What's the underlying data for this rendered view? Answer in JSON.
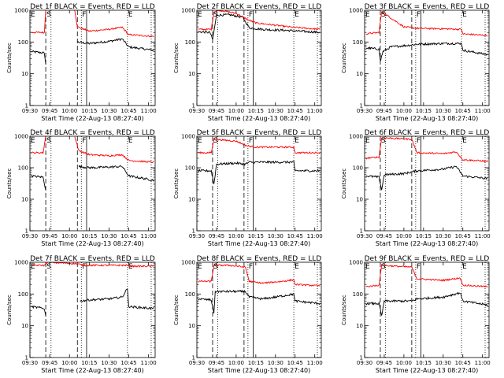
{
  "chart_data": {
    "type": "line",
    "layout": "3x3 grid",
    "y_scale": "log",
    "ylim": [
      1,
      1000
    ],
    "xlim": [
      "09:30",
      "11:05"
    ],
    "x_ticks": [
      "09:30",
      "09:45",
      "10:00",
      "10:15",
      "10:30",
      "10:45",
      "11:00"
    ],
    "y_ticks": [
      "1",
      "10",
      "100",
      "1000"
    ],
    "ylabel": "Counts/sec",
    "xlabel": "Start Time (22-Aug-13 08:27:40)",
    "series_colors": {
      "events": "#000000",
      "lld": "#ff0000"
    },
    "markers": [
      {
        "label": "E",
        "time": "09:30",
        "style": "dotted"
      },
      {
        "label": "S",
        "time": "09:42",
        "style": "dashed"
      },
      {
        "label": "",
        "time": "09:46",
        "style": "dotted"
      },
      {
        "label": "",
        "time": "10:06",
        "style": "dashed"
      },
      {
        "label": "F",
        "time": "10:09",
        "style": "dotted"
      },
      {
        "label": "",
        "time": "10:13",
        "style": "solid"
      },
      {
        "label": "E",
        "time": "10:44",
        "style": "dotted"
      },
      {
        "label": "",
        "time": "11:02",
        "style": "dotted"
      }
    ],
    "panels": [
      {
        "title": "Det 1f BLACK = Events, RED = LLD",
        "events": [
          [
            [
              "09:31",
              50
            ],
            [
              "09:41",
              45
            ],
            [
              "09:42",
              20
            ]
          ],
          [
            [
              "10:06",
              100
            ],
            [
              "10:15",
              90
            ],
            [
              "10:30",
              105
            ],
            [
              "10:40",
              125
            ],
            [
              "10:45",
              70
            ],
            [
              "11:04",
              55
            ]
          ]
        ],
        "lld": [
          [
            [
              "09:31",
              200
            ],
            [
              "09:41",
              200
            ],
            [
              "09:42",
              1000
            ]
          ],
          [
            [
              "10:04",
              1000
            ],
            [
              "10:06",
              300
            ],
            [
              "10:15",
              220
            ],
            [
              "10:30",
              250
            ],
            [
              "10:40",
              290
            ],
            [
              "10:45",
              170
            ],
            [
              "11:04",
              150
            ]
          ]
        ]
      },
      {
        "title": "Det 2f BLACK = Events, RED = LLD",
        "events": [
          [
            [
              "09:31",
              210
            ],
            [
              "09:40",
              200
            ],
            [
              "09:42",
              120
            ],
            [
              "09:43",
              210
            ],
            [
              "09:45",
              700
            ],
            [
              "09:55",
              720
            ],
            [
              "10:05",
              600
            ],
            [
              "10:10",
              280
            ],
            [
              "10:20",
              250
            ],
            [
              "10:40",
              230
            ],
            [
              "11:04",
              200
            ]
          ]
        ],
        "lld": [
          [
            [
              "09:31",
              250
            ],
            [
              "09:41",
              250
            ],
            [
              "09:43",
              900
            ],
            [
              "09:47",
              1000
            ],
            [
              "10:00",
              800
            ],
            [
              "10:09",
              500
            ],
            [
              "10:15",
              400
            ],
            [
              "10:40",
              300
            ],
            [
              "11:04",
              250
            ]
          ]
        ]
      },
      {
        "title": "Det 3f BLACK = Events, RED = LLD",
        "events": [
          [
            [
              "09:31",
              65
            ],
            [
              "09:41",
              60
            ],
            [
              "09:42",
              25
            ],
            [
              "09:44",
              50
            ],
            [
              "09:50",
              70
            ],
            [
              "10:05",
              80
            ],
            [
              "10:10",
              85
            ],
            [
              "10:30",
              90
            ],
            [
              "10:44",
              90
            ],
            [
              "10:45",
              55
            ],
            [
              "11:04",
              40
            ]
          ]
        ],
        "lld": [
          [
            [
              "09:31",
              180
            ],
            [
              "09:41",
              200
            ],
            [
              "09:43",
              900
            ],
            [
              "10:00",
              300
            ],
            [
              "10:10",
              270
            ],
            [
              "10:30",
              260
            ],
            [
              "10:44",
              250
            ],
            [
              "10:45",
              180
            ],
            [
              "11:04",
              160
            ]
          ]
        ]
      },
      {
        "title": "Det 4f BLACK = Events, RED = LLD",
        "events": [
          [
            [
              "09:31",
              55
            ],
            [
              "09:40",
              50
            ],
            [
              "09:42",
              20
            ]
          ],
          [
            [
              "10:07",
              110
            ],
            [
              "10:15",
              100
            ],
            [
              "10:30",
              105
            ],
            [
              "10:40",
              110
            ],
            [
              "10:45",
              55
            ],
            [
              "11:04",
              40
            ]
          ]
        ],
        "lld": [
          [
            [
              "09:31",
              300
            ],
            [
              "09:40",
              300
            ],
            [
              "09:42",
              1000
            ]
          ],
          [
            [
              "10:04",
              1000
            ],
            [
              "10:07",
              350
            ],
            [
              "10:15",
              260
            ],
            [
              "10:30",
              240
            ],
            [
              "10:40",
              260
            ],
            [
              "10:45",
              170
            ],
            [
              "11:04",
              150
            ]
          ]
        ]
      },
      {
        "title": "Det 5f BLACK = Events, RED = LLD",
        "events": [
          [
            [
              "09:31",
              80
            ],
            [
              "09:41",
              80
            ],
            [
              "09:43",
              30
            ],
            [
              "09:45",
              130
            ],
            [
              "10:00",
              140
            ],
            [
              "10:07",
              130
            ],
            [
              "10:10",
              150
            ],
            [
              "10:44",
              150
            ],
            [
              "10:45",
              80
            ],
            [
              "11:04",
              80
            ]
          ]
        ],
        "lld": [
          [
            [
              "09:31",
              300
            ],
            [
              "09:41",
              300
            ],
            [
              "09:43",
              800
            ],
            [
              "10:00",
              700
            ],
            [
              "10:08",
              500
            ],
            [
              "10:15",
              450
            ],
            [
              "10:44",
              450
            ],
            [
              "10:45",
              300
            ],
            [
              "11:04",
              300
            ]
          ]
        ]
      },
      {
        "title": "Det 6f BLACK = Events, RED = LLD",
        "events": [
          [
            [
              "09:31",
              55
            ],
            [
              "09:41",
              50
            ],
            [
              "09:43",
              20
            ],
            [
              "09:45",
              60
            ],
            [
              "10:00",
              65
            ],
            [
              "10:07",
              75
            ],
            [
              "10:10",
              80
            ],
            [
              "10:30",
              90
            ],
            [
              "10:40",
              110
            ],
            [
              "10:45",
              55
            ],
            [
              "11:04",
              45
            ]
          ]
        ],
        "lld": [
          [
            [
              "09:31",
              200
            ],
            [
              "09:41",
              220
            ],
            [
              "09:43",
              900
            ],
            [
              "10:06",
              800
            ],
            [
              "10:10",
              300
            ],
            [
              "10:30",
              280
            ],
            [
              "10:40",
              320
            ],
            [
              "10:45",
              180
            ],
            [
              "11:04",
              160
            ]
          ]
        ]
      },
      {
        "title": "Det 7f BLACK = Events, RED = LLD",
        "events": [
          [
            [
              "09:31",
              40
            ],
            [
              "09:41",
              35
            ],
            [
              "09:42",
              20
            ]
          ],
          [
            [
              "10:08",
              60
            ],
            [
              "10:15",
              65
            ],
            [
              "10:30",
              70
            ],
            [
              "10:40",
              80
            ],
            [
              "10:44",
              150
            ],
            [
              "10:45",
              40
            ],
            [
              "11:04",
              35
            ]
          ]
        ],
        "lld": [
          [
            [
              "09:31",
              800
            ],
            [
              "09:41",
              800
            ],
            [
              "09:43",
              1000
            ],
            [
              "10:06",
              900
            ],
            [
              "10:10",
              800
            ],
            [
              "10:30",
              800
            ],
            [
              "10:44",
              800
            ],
            [
              "10:45",
              750
            ],
            [
              "11:04",
              750
            ]
          ]
        ]
      },
      {
        "title": "Det 8f BLACK = Events, RED = LLD",
        "events": [
          [
            [
              "09:31",
              70
            ],
            [
              "09:41",
              65
            ],
            [
              "09:43",
              25
            ],
            [
              "09:44",
              120
            ],
            [
              "09:55",
              120
            ],
            [
              "10:07",
              120
            ],
            [
              "10:10",
              80
            ],
            [
              "10:20",
              70
            ],
            [
              "10:30",
              80
            ],
            [
              "10:44",
              100
            ],
            [
              "10:45",
              60
            ],
            [
              "11:04",
              50
            ]
          ]
        ],
        "lld": [
          [
            [
              "09:31",
              250
            ],
            [
              "09:41",
              250
            ],
            [
              "09:43",
              800
            ],
            [
              "09:55",
              800
            ],
            [
              "10:07",
              700
            ],
            [
              "10:10",
              250
            ],
            [
              "10:20",
              220
            ],
            [
              "10:35",
              250
            ],
            [
              "10:44",
              280
            ],
            [
              "10:45",
              200
            ],
            [
              "11:04",
              180
            ]
          ]
        ]
      },
      {
        "title": "Det 9f BLACK = Events, RED = LLD",
        "events": [
          [
            [
              "09:31",
              50
            ],
            [
              "09:41",
              50
            ],
            [
              "09:43",
              20
            ],
            [
              "09:45",
              60
            ],
            [
              "10:06",
              60
            ],
            [
              "10:10",
              70
            ],
            [
              "10:30",
              80
            ],
            [
              "10:43",
              110
            ],
            [
              "10:45",
              60
            ],
            [
              "11:04",
              45
            ]
          ]
        ],
        "lld": [
          [
            [
              "09:31",
              170
            ],
            [
              "09:41",
              190
            ],
            [
              "09:43",
              800
            ],
            [
              "10:06",
              700
            ],
            [
              "10:10",
              300
            ],
            [
              "10:30",
              270
            ],
            [
              "10:43",
              320
            ],
            [
              "10:45",
              190
            ],
            [
              "11:04",
              170
            ]
          ]
        ]
      }
    ]
  }
}
